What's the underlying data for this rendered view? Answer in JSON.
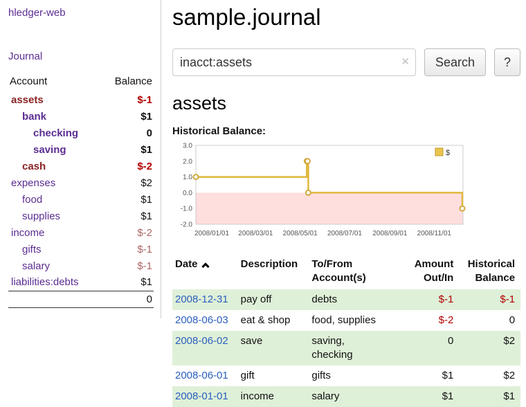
{
  "sidebar": {
    "app_title": "hledger-web",
    "nav": {
      "journal": "Journal"
    },
    "accounts_table": {
      "col_account": "Account",
      "col_balance": "Balance",
      "rows": [
        {
          "name": "assets",
          "balance": "$-1"
        },
        {
          "name": "bank",
          "balance": "$1"
        },
        {
          "name": "checking",
          "balance": "0"
        },
        {
          "name": "saving",
          "balance": "$1"
        },
        {
          "name": "cash",
          "balance": "$-2"
        },
        {
          "name": "expenses",
          "balance": "$2"
        },
        {
          "name": "food",
          "balance": "$1"
        },
        {
          "name": "supplies",
          "balance": "$1"
        },
        {
          "name": "income",
          "balance": "$-2"
        },
        {
          "name": "gifts",
          "balance": "$-1"
        },
        {
          "name": "salary",
          "balance": "$-1"
        },
        {
          "name": "liabilities:debts",
          "balance": "$1"
        }
      ],
      "total": "0"
    }
  },
  "main": {
    "page_title": "sample.journal",
    "search": {
      "value": "inacct:assets",
      "clear_icon": "✕",
      "search_button": "Search",
      "help_button": "?"
    },
    "account_heading": "assets",
    "chart_title": "Historical Balance:",
    "register": {
      "headers": {
        "date": "Date",
        "description": "Description",
        "accounts": "To/From\nAccount(s)",
        "amount": "Amount\nOut/In",
        "balance": "Historical\nBalance"
      },
      "rows": [
        {
          "date": "2008-12-31",
          "description": "pay off",
          "accounts": "debts",
          "amount": "$-1",
          "balance": "$-1"
        },
        {
          "date": "2008-06-03",
          "description": "eat & shop",
          "accounts": "food, supplies",
          "amount": "$-2",
          "balance": "0"
        },
        {
          "date": "2008-06-02",
          "description": "save",
          "accounts": "saving,\nchecking",
          "amount": "0",
          "balance": "$2"
        },
        {
          "date": "2008-06-01",
          "description": "gift",
          "accounts": "gifts",
          "amount": "$1",
          "balance": "$2"
        },
        {
          "date": "2008-01-01",
          "description": "income",
          "accounts": "salary",
          "amount": "$1",
          "balance": "$1"
        }
      ]
    }
  },
  "colors": {
    "link_purple": "#5b2d91",
    "link_blue": "#2a5fc0",
    "negative_red": "#b30000",
    "muted_red": "#aa6666",
    "row_green": "#dff0d8"
  },
  "chart_data": {
    "type": "line",
    "style": "step",
    "title": "Historical Balance:",
    "legend": [
      {
        "label": "$",
        "color": "#e8c54f"
      }
    ],
    "legend_position": "top-right",
    "ylim": [
      -2,
      3
    ],
    "yticks": [
      "3.0",
      "2.0",
      "1.0",
      "0.0",
      "-1.0",
      "-2.0"
    ],
    "xrange": [
      "2008-01-01",
      "2009-01-01"
    ],
    "xticks": [
      {
        "t": "2008-01-01",
        "label": "2008/01/01"
      },
      {
        "t": "2008-03-01",
        "label": "2008/03/01"
      },
      {
        "t": "2008-05-01",
        "label": "2008/05/01"
      },
      {
        "t": "2008-07-01",
        "label": "2008/07/01"
      },
      {
        "t": "2008-09-01",
        "label": "2008/09/01"
      },
      {
        "t": "2008-11-01",
        "label": "2008/11/01"
      }
    ],
    "points": [
      {
        "t": "2008-01-01",
        "y": 1
      },
      {
        "t": "2008-06-01",
        "y": 2
      },
      {
        "t": "2008-06-02",
        "y": 2
      },
      {
        "t": "2008-06-03",
        "y": 0
      },
      {
        "t": "2008-12-31",
        "y": -1
      }
    ],
    "line_color": "#e0b83c",
    "marker_stroke": "#d2a93c",
    "negative_fill": "#ffdede",
    "plot_border": "#cccccc",
    "grid": false
  }
}
